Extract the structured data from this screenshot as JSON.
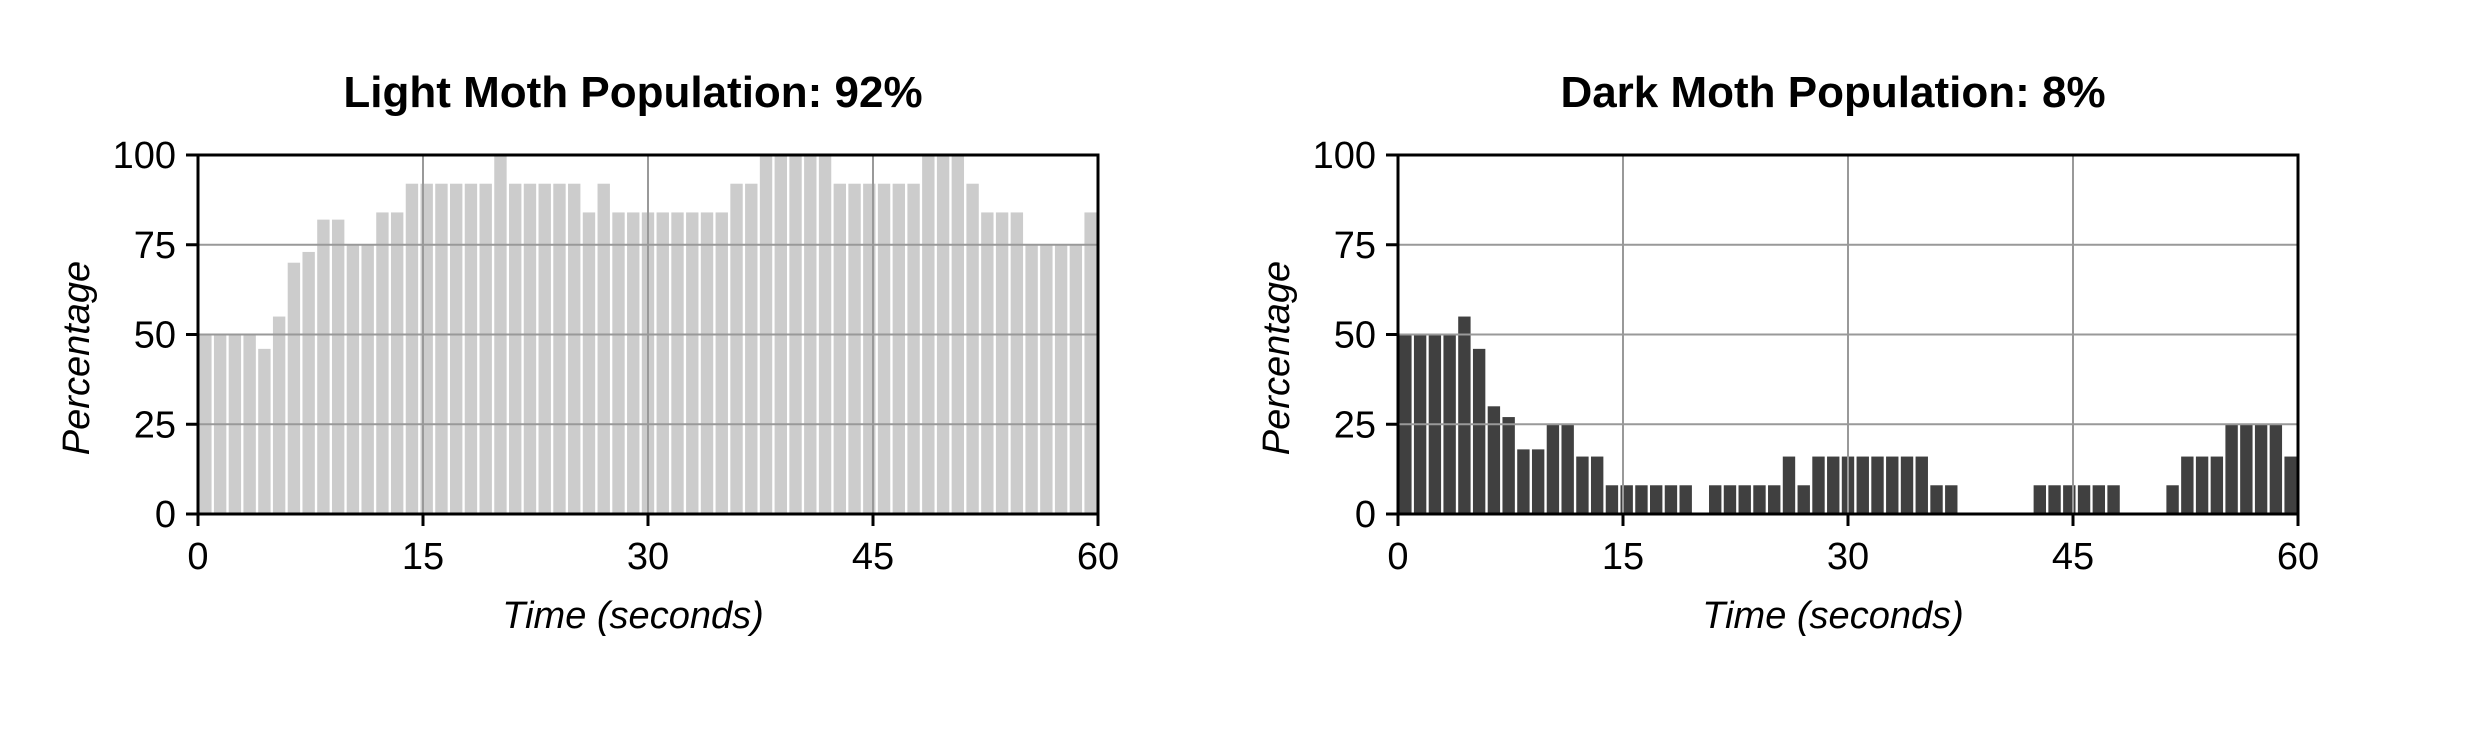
{
  "chart_data": [
    {
      "type": "bar",
      "title": "Light Moth Population: 92%",
      "xlabel": "Time (seconds)",
      "ylabel": "Percentage",
      "xlim": [
        0,
        60
      ],
      "ylim": [
        0,
        100
      ],
      "xticks": [
        "0",
        "15",
        "30",
        "45",
        "60"
      ],
      "yticks": [
        "0",
        "25",
        "50",
        "75",
        "100"
      ],
      "grid": true,
      "bar_color": "#cccccc",
      "values": [
        50,
        50,
        50,
        50,
        46,
        55,
        70,
        73,
        82,
        82,
        75,
        75,
        84,
        84,
        92,
        92,
        92,
        92,
        92,
        92,
        100,
        92,
        92,
        92,
        92,
        92,
        84,
        92,
        84,
        84,
        84,
        84,
        84,
        84,
        84,
        84,
        92,
        92,
        100,
        100,
        100,
        100,
        100,
        92,
        92,
        92,
        92,
        92,
        92,
        100,
        100,
        100,
        92,
        84,
        84,
        84,
        75,
        75,
        75,
        75,
        84
      ]
    },
    {
      "type": "bar",
      "title": "Dark Moth Population: 8%",
      "xlabel": "Time (seconds)",
      "ylabel": "Percentage",
      "xlim": [
        0,
        60
      ],
      "ylim": [
        0,
        100
      ],
      "xticks": [
        "0",
        "15",
        "30",
        "45",
        "60"
      ],
      "yticks": [
        "0",
        "25",
        "50",
        "75",
        "100"
      ],
      "grid": true,
      "bar_color": "#404040",
      "values": [
        50,
        50,
        50,
        50,
        55,
        46,
        30,
        27,
        18,
        18,
        25,
        25,
        16,
        16,
        8,
        8,
        8,
        8,
        8,
        8,
        0,
        8,
        8,
        8,
        8,
        8,
        16,
        8,
        16,
        16,
        16,
        16,
        16,
        16,
        16,
        16,
        8,
        8,
        0,
        0,
        0,
        0,
        0,
        8,
        8,
        8,
        8,
        8,
        8,
        0,
        0,
        0,
        8,
        16,
        16,
        16,
        25,
        25,
        25,
        25,
        16
      ]
    }
  ]
}
